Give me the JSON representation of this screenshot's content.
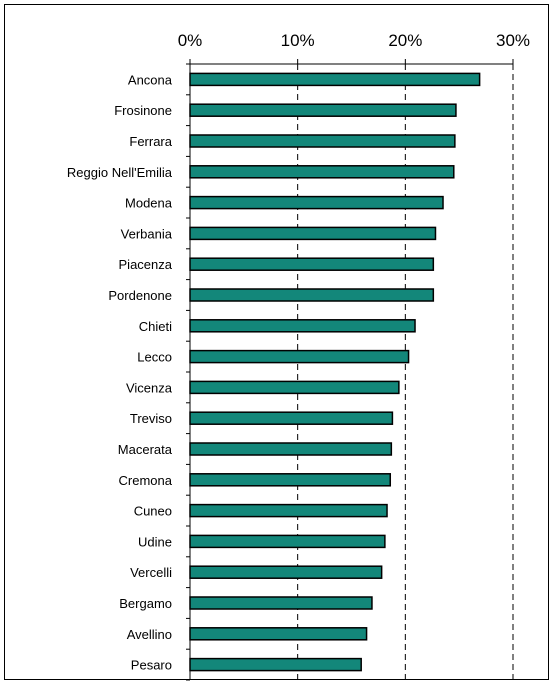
{
  "chart_data": {
    "type": "bar",
    "orientation": "horizontal",
    "categories": [
      "Ancona",
      "Frosinone",
      "Ferrara",
      "Reggio Nell'Emilia",
      "Modena",
      "Verbania",
      "Piacenza",
      "Pordenone",
      "Chieti",
      "Lecco",
      "Vicenza",
      "Treviso",
      "Macerata",
      "Cremona",
      "Cuneo",
      "Udine",
      "Vercelli",
      "Bergamo",
      "Avellino",
      "Pesaro"
    ],
    "values": [
      26.9,
      24.7,
      24.6,
      24.5,
      23.5,
      22.8,
      22.6,
      22.6,
      20.9,
      20.3,
      19.4,
      18.8,
      18.7,
      18.6,
      18.3,
      18.1,
      17.8,
      16.9,
      16.4,
      15.9
    ],
    "value_unit": "%",
    "xlim": [
      0,
      30
    ],
    "x_ticks": [
      0,
      10,
      20,
      30
    ],
    "x_tick_labels": [
      "0%",
      "10%",
      "20%",
      "30%"
    ],
    "x_axis_position": "top",
    "gridlines": "vertical dashed",
    "bar_color": "#13877a",
    "bar_edge_color": "#000000",
    "title": "",
    "xlabel": "",
    "ylabel": ""
  }
}
